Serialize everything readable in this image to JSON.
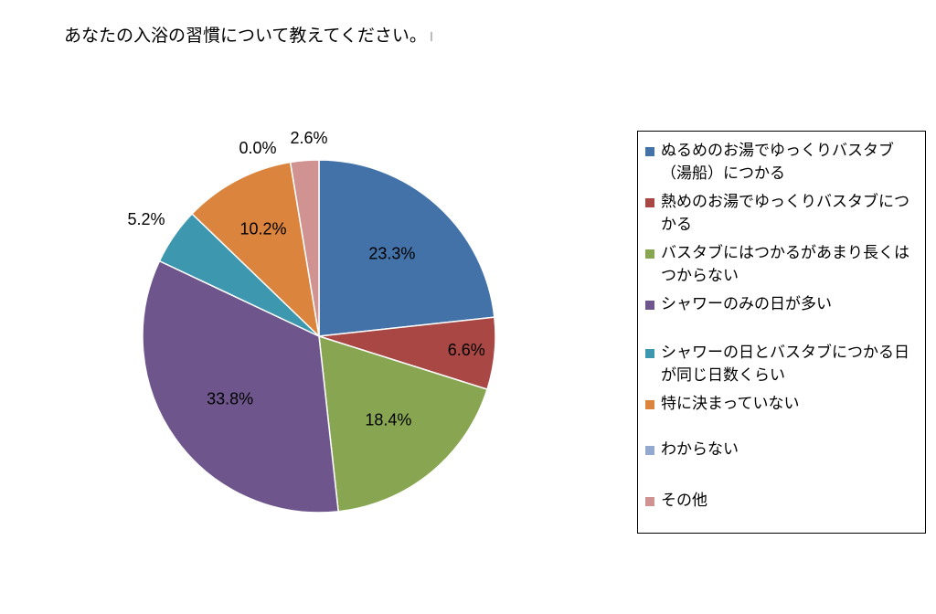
{
  "chart_data": {
    "type": "pie",
    "title": "あなたの入浴の習慣について教えてください。",
    "slices": [
      {
        "label": "ぬるめのお湯でゆっくりバスタブ（湯船）につかる",
        "value": 23.3,
        "display": "23.3%",
        "color": "#4372a8"
      },
      {
        "label": "熱めのお湯でゆっくりバスタブにつかる",
        "value": 6.6,
        "display": "6.6%",
        "color": "#a84744"
      },
      {
        "label": "バスタブにはつかるがあまり長くはつからない",
        "value": 18.4,
        "display": "18.4%",
        "color": "#88a651"
      },
      {
        "label": "シャワーのみの日が多い",
        "value": 33.8,
        "display": "33.8%",
        "color": "#6e568d"
      },
      {
        "label": "シャワーの日とバスタブにつかる日が同じ日数くらい",
        "value": 5.2,
        "display": "5.2%",
        "color": "#3c97af"
      },
      {
        "label": "特に決まっていない",
        "value": 10.2,
        "display": "10.2%",
        "color": "#db843d"
      },
      {
        "label": "わからない",
        "value": 0.0,
        "display": "0.0%",
        "color": "#93a9cf"
      },
      {
        "label": "その他",
        "value": 2.6,
        "display": "2.6%",
        "color": "#d19391"
      }
    ],
    "start_angle_deg": 0,
    "direction": "clockwise",
    "legend_position": "right"
  }
}
